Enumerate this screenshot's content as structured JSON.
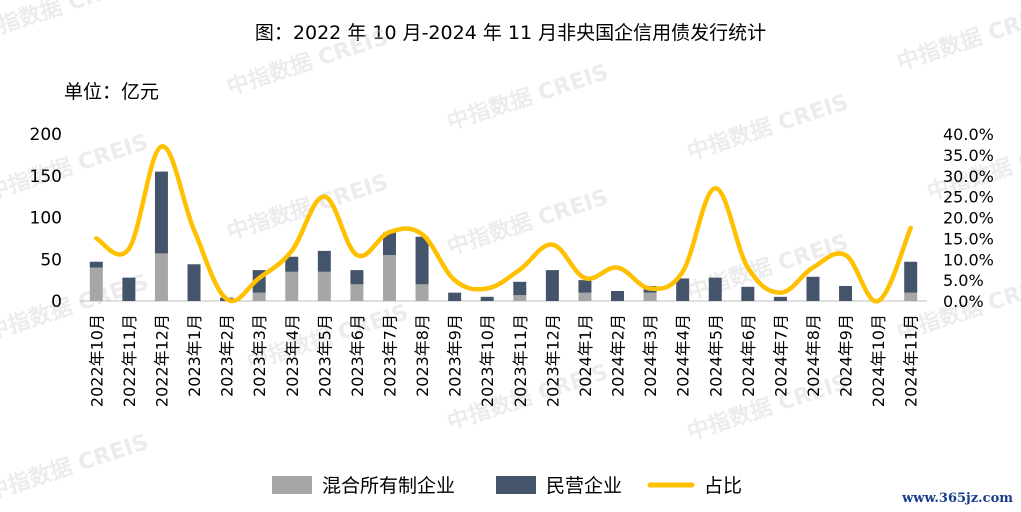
{
  "header": {
    "title": "图：2022 年 10 月-2024 年 11 月非央国企信用债发行统计",
    "unit": "单位：亿元"
  },
  "watermark": "中指数据 CREIS",
  "site": "www.365jz.com",
  "colors": {
    "mixed": "#a6a6a6",
    "private": "#44546a",
    "ratio": "#ffc000"
  },
  "chart_data": {
    "type": "bar",
    "stacked": true,
    "categories": [
      "2022年10月",
      "2022年11月",
      "2022年12月",
      "2023年1月",
      "2023年2月",
      "2023年3月",
      "2023年4月",
      "2023年5月",
      "2023年6月",
      "2023年7月",
      "2023年8月",
      "2023年9月",
      "2023年10月",
      "2023年11月",
      "2023年12月",
      "2024年1月",
      "2024年2月",
      "2024年3月",
      "2024年4月",
      "2024年5月",
      "2024年6月",
      "2024年7月",
      "2024年8月",
      "2024年9月",
      "2024年10月",
      "2024年11月"
    ],
    "series": [
      {
        "name": "混合所有制企业",
        "type": "bar",
        "axis": "left",
        "values": [
          40,
          0,
          57,
          0,
          0,
          10,
          35,
          35,
          20,
          55,
          20,
          0,
          0,
          7,
          0,
          10,
          0,
          10,
          0,
          0,
          0,
          0,
          0,
          0,
          0,
          10
        ]
      },
      {
        "name": "民营企业",
        "type": "bar",
        "axis": "left",
        "values": [
          7,
          28,
          98,
          44,
          4,
          27,
          18,
          25,
          17,
          27,
          57,
          10,
          5,
          16,
          37,
          15,
          12,
          8,
          27,
          28,
          17,
          5,
          29,
          18,
          0,
          37
        ]
      },
      {
        "name": "占比",
        "type": "line",
        "axis": "right",
        "unit": "%",
        "values": [
          15,
          12.5,
          37,
          17,
          0.5,
          5.5,
          12,
          25,
          11,
          16.5,
          16,
          5,
          3,
          7.5,
          13.5,
          5.5,
          8,
          3,
          7,
          27,
          8,
          2,
          8,
          11,
          0,
          17.5
        ]
      }
    ],
    "yleft": {
      "ylim": [
        0,
        200
      ],
      "ticks": [
        "0",
        "50",
        "100",
        "150",
        "200"
      ]
    },
    "yright": {
      "ylim": [
        0,
        40
      ],
      "ticks": [
        "0.0%",
        "5.0%",
        "10.0%",
        "15.0%",
        "20.0%",
        "25.0%",
        "30.0%",
        "35.0%",
        "40.0%"
      ]
    },
    "grid": false,
    "legend": "bottom",
    "legend_labels": [
      "混合所有制企业",
      "民营企业",
      "占比"
    ]
  }
}
